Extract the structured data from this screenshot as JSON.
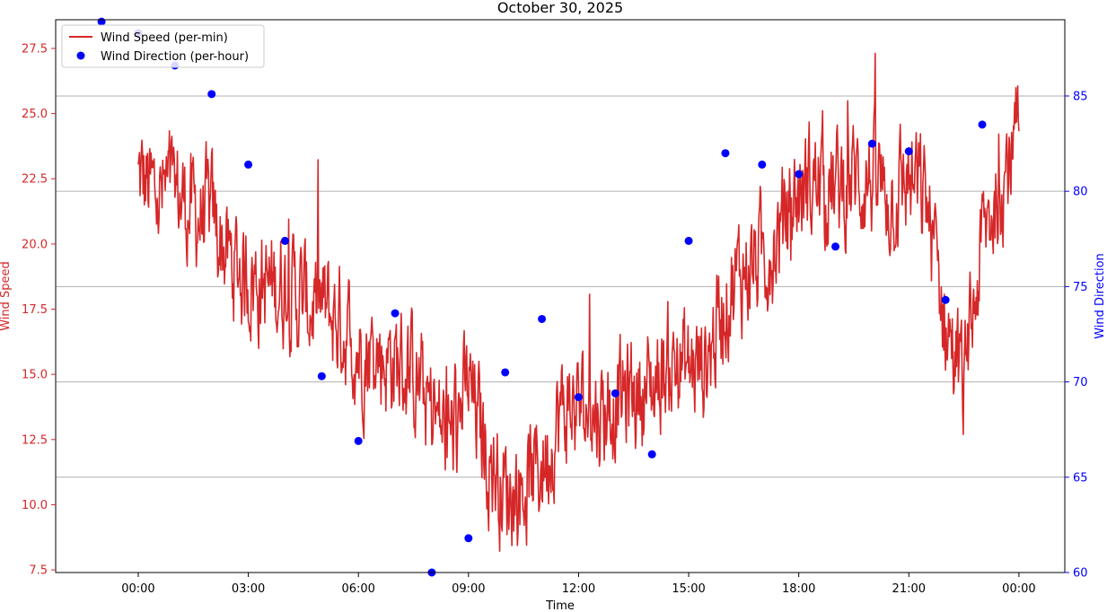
{
  "chart_data": {
    "type": "line",
    "title": "October 30, 2025",
    "xlabel": "Time",
    "x_tick_labels": [
      "00:00",
      "03:00",
      "06:00",
      "09:00",
      "12:00",
      "15:00",
      "18:00",
      "21:00",
      "00:00"
    ],
    "x_range_hours": [
      -2.25,
      25.25
    ],
    "y_left": {
      "label": "Wind Speed",
      "color": "#d62728",
      "range": [
        7.4,
        28.6
      ],
      "ticks": [
        7.5,
        10.0,
        12.5,
        15.0,
        17.5,
        20.0,
        22.5,
        25.0,
        27.5
      ],
      "tick_labels": [
        "7.5",
        "10.0",
        "12.5",
        "15.0",
        "17.5",
        "20.0",
        "22.5",
        "25.0",
        "27.5"
      ]
    },
    "y_right": {
      "label": "Wind Direction",
      "color": "#0000ff",
      "range": [
        60,
        89
      ],
      "ticks": [
        60,
        65,
        70,
        75,
        80,
        85
      ],
      "tick_labels": [
        "60",
        "65",
        "70",
        "75",
        "80",
        "85"
      ]
    },
    "grid": "horizontal lines at right-axis ticks",
    "legend": {
      "placement": "upper-left",
      "entries": [
        "Wind Speed (per-min)",
        "Wind Direction (per-hour)"
      ]
    },
    "series": [
      {
        "name": "Wind Speed (per-min)",
        "kind": "line",
        "axis": "left",
        "color": "#d62728",
        "x_hours": [
          0,
          0.5,
          1,
          1.5,
          2,
          2.5,
          3,
          3.5,
          4,
          4.5,
          5,
          5.5,
          6,
          6.5,
          7,
          7.5,
          8,
          8.5,
          9,
          9.5,
          10,
          10.5,
          11,
          11.5,
          12,
          12.5,
          13,
          13.5,
          14,
          14.5,
          15,
          15.5,
          16,
          16.5,
          17,
          17.5,
          18,
          18.5,
          19,
          19.5,
          20,
          20.5,
          21,
          21.5,
          22,
          22.5,
          23,
          23.5,
          24
        ],
        "values": [
          22.5,
          21.8,
          22.0,
          21.2,
          21.0,
          19.3,
          18.8,
          18.3,
          18.5,
          17.8,
          17.5,
          17.0,
          16.0,
          15.8,
          15.5,
          15.0,
          13.5,
          12.6,
          14.5,
          12.0,
          10.5,
          10.8,
          11.5,
          13.5,
          13.8,
          13.5,
          14.0,
          14.3,
          14.5,
          15.5,
          15.2,
          15.5,
          18.0,
          19.0,
          19.5,
          20.5,
          22.0,
          22.5,
          22.0,
          22.5,
          22.5,
          21.8,
          22.5,
          21.5,
          17.0,
          14.5,
          20.0,
          22.5,
          24.0
        ],
        "noise_amplitude": 1.6,
        "samples_per_minute": 1
      },
      {
        "name": "Wind Direction (per-hour)",
        "kind": "scatter",
        "axis": "right",
        "color": "#0000ff",
        "x_hours": [
          -1,
          0,
          1,
          2,
          3,
          4,
          5,
          6,
          7,
          8,
          9,
          10,
          11,
          12,
          13,
          14,
          15,
          16,
          17,
          18,
          19,
          20,
          21,
          22,
          23
        ],
        "values": [
          88.9,
          88.3,
          86.6,
          85.1,
          81.4,
          77.4,
          70.3,
          66.9,
          73.6,
          60.0,
          61.8,
          70.5,
          73.3,
          69.2,
          69.4,
          66.2,
          77.4,
          82.0,
          81.4,
          80.9,
          77.1,
          82.5,
          82.1,
          74.3,
          83.5
        ]
      }
    ]
  }
}
